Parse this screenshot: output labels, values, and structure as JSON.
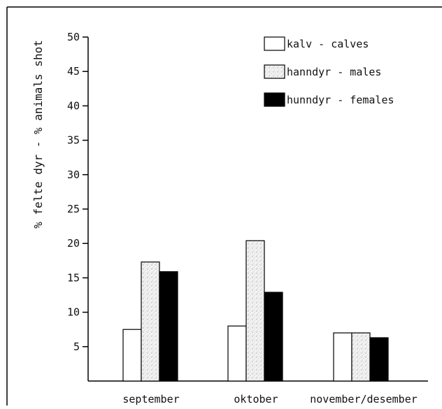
{
  "chart_data": {
    "type": "bar",
    "ylabel": "% felte dyr - % animals shot",
    "xlabel": "",
    "ylim": [
      0,
      50
    ],
    "yticks": [
      5,
      10,
      15,
      20,
      25,
      30,
      35,
      40,
      45,
      50
    ],
    "categories": [
      "september",
      "oktober",
      "november/desember"
    ],
    "series": [
      {
        "name": "kalv - calves",
        "values": [
          7.5,
          8.0,
          7.0
        ],
        "fill": "white"
      },
      {
        "name": "hanndyr - males",
        "values": [
          17.3,
          20.4,
          7.0
        ],
        "fill": "stipple"
      },
      {
        "name": "hunndyr - females",
        "values": [
          15.9,
          12.9,
          6.3
        ],
        "fill": "black"
      }
    ],
    "legend_position": "top-right",
    "grid": false,
    "colors": {
      "frame": "#000000",
      "females": "#000000",
      "calves": "#ffffff"
    }
  }
}
